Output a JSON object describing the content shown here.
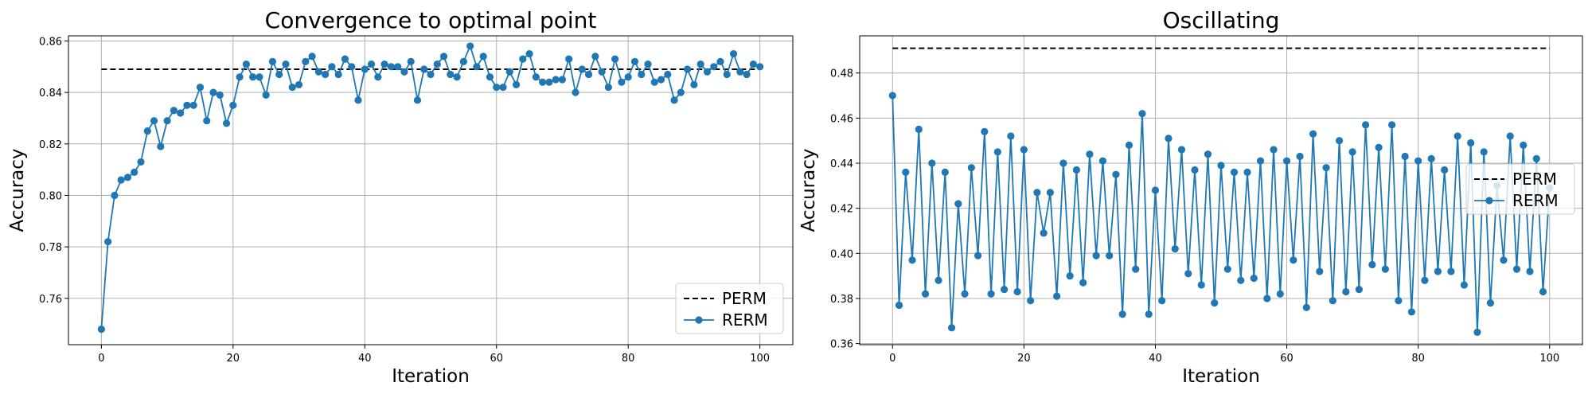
{
  "chart_data": [
    {
      "type": "line",
      "title": "Convergence to optimal point",
      "xlabel": "Iteration",
      "ylabel": "Accuracy",
      "xlim": [
        -5,
        105
      ],
      "ylim": [
        0.742,
        0.862
      ],
      "xticks": [
        0,
        20,
        40,
        60,
        80,
        100
      ],
      "yticks": [
        0.76,
        0.78,
        0.8,
        0.82,
        0.84,
        0.86
      ],
      "ytick_labels": [
        "0.76",
        "0.78",
        "0.80",
        "0.82",
        "0.84",
        "0.86"
      ],
      "grid": true,
      "legend_position": "lower-right",
      "series": [
        {
          "name": "PERM",
          "style": "dashed",
          "color": "#000000",
          "x": [
            0,
            100
          ],
          "values": [
            0.849,
            0.849
          ]
        },
        {
          "name": "RERM",
          "style": "line-marker",
          "color": "#1f77b4",
          "x": [
            0,
            1,
            2,
            3,
            4,
            5,
            6,
            7,
            8,
            9,
            10,
            11,
            12,
            13,
            14,
            15,
            16,
            17,
            18,
            19,
            20,
            21,
            22,
            23,
            24,
            25,
            26,
            27,
            28,
            29,
            30,
            31,
            32,
            33,
            34,
            35,
            36,
            37,
            38,
            39,
            40,
            41,
            42,
            43,
            44,
            45,
            46,
            47,
            48,
            49,
            50,
            51,
            52,
            53,
            54,
            55,
            56,
            57,
            58,
            59,
            60,
            61,
            62,
            63,
            64,
            65,
            66,
            67,
            68,
            69,
            70,
            71,
            72,
            73,
            74,
            75,
            76,
            77,
            78,
            79,
            80,
            81,
            82,
            83,
            84,
            85,
            86,
            87,
            88,
            89,
            90,
            91,
            92,
            93,
            94,
            95,
            96,
            97,
            98,
            99,
            100
          ],
          "values": [
            0.748,
            0.782,
            0.8,
            0.806,
            0.807,
            0.809,
            0.813,
            0.825,
            0.829,
            0.819,
            0.829,
            0.833,
            0.832,
            0.835,
            0.835,
            0.842,
            0.829,
            0.84,
            0.839,
            0.828,
            0.835,
            0.846,
            0.851,
            0.846,
            0.846,
            0.839,
            0.852,
            0.847,
            0.851,
            0.842,
            0.843,
            0.852,
            0.854,
            0.848,
            0.847,
            0.85,
            0.847,
            0.853,
            0.85,
            0.837,
            0.849,
            0.851,
            0.846,
            0.851,
            0.85,
            0.85,
            0.848,
            0.852,
            0.837,
            0.849,
            0.847,
            0.851,
            0.854,
            0.847,
            0.846,
            0.852,
            0.858,
            0.85,
            0.854,
            0.846,
            0.842,
            0.842,
            0.848,
            0.843,
            0.853,
            0.855,
            0.846,
            0.844,
            0.844,
            0.845,
            0.845,
            0.853,
            0.84,
            0.849,
            0.847,
            0.854,
            0.848,
            0.842,
            0.853,
            0.844,
            0.846,
            0.852,
            0.847,
            0.851,
            0.844,
            0.845,
            0.847,
            0.837,
            0.84,
            0.849,
            0.843,
            0.851,
            0.848,
            0.85,
            0.852,
            0.847,
            0.855,
            0.848,
            0.847,
            0.851,
            0.85
          ]
        }
      ]
    },
    {
      "type": "line",
      "title": "Oscillating",
      "xlabel": "Iteration",
      "ylabel": "Accuracy",
      "xlim": [
        -5,
        105
      ],
      "ylim": [
        0.3595,
        0.4965
      ],
      "xticks": [
        0,
        20,
        40,
        60,
        80,
        100
      ],
      "yticks": [
        0.36,
        0.38,
        0.4,
        0.42,
        0.44,
        0.46,
        0.48
      ],
      "ytick_labels": [
        "0.36",
        "0.38",
        "0.40",
        "0.42",
        "0.44",
        "0.46",
        "0.48"
      ],
      "grid": true,
      "legend_position": "center-right",
      "series": [
        {
          "name": "PERM",
          "style": "dashed",
          "color": "#000000",
          "x": [
            0,
            100
          ],
          "values": [
            0.491,
            0.491
          ]
        },
        {
          "name": "RERM",
          "style": "line-marker",
          "color": "#1f77b4",
          "x": [
            0,
            1,
            2,
            3,
            4,
            5,
            6,
            7,
            8,
            9,
            10,
            11,
            12,
            13,
            14,
            15,
            16,
            17,
            18,
            19,
            20,
            21,
            22,
            23,
            24,
            25,
            26,
            27,
            28,
            29,
            30,
            31,
            32,
            33,
            34,
            35,
            36,
            37,
            38,
            39,
            40,
            41,
            42,
            43,
            44,
            45,
            46,
            47,
            48,
            49,
            50,
            51,
            52,
            53,
            54,
            55,
            56,
            57,
            58,
            59,
            60,
            61,
            62,
            63,
            64,
            65,
            66,
            67,
            68,
            69,
            70,
            71,
            72,
            73,
            74,
            75,
            76,
            77,
            78,
            79,
            80,
            81,
            82,
            83,
            84,
            85,
            86,
            87,
            88,
            89,
            90,
            91,
            92,
            93,
            94,
            95,
            96,
            97,
            98,
            99,
            100
          ],
          "values": [
            0.47,
            0.377,
            0.436,
            0.397,
            0.455,
            0.382,
            0.44,
            0.388,
            0.436,
            0.367,
            0.422,
            0.382,
            0.438,
            0.399,
            0.454,
            0.382,
            0.445,
            0.384,
            0.452,
            0.383,
            0.446,
            0.379,
            0.427,
            0.409,
            0.427,
            0.381,
            0.44,
            0.39,
            0.437,
            0.387,
            0.444,
            0.399,
            0.441,
            0.399,
            0.435,
            0.373,
            0.448,
            0.393,
            0.462,
            0.373,
            0.428,
            0.379,
            0.451,
            0.402,
            0.446,
            0.391,
            0.437,
            0.386,
            0.444,
            0.378,
            0.439,
            0.393,
            0.436,
            0.388,
            0.436,
            0.389,
            0.441,
            0.38,
            0.446,
            0.382,
            0.441,
            0.397,
            0.443,
            0.376,
            0.453,
            0.392,
            0.438,
            0.379,
            0.45,
            0.383,
            0.445,
            0.384,
            0.457,
            0.395,
            0.447,
            0.393,
            0.457,
            0.379,
            0.443,
            0.374,
            0.441,
            0.388,
            0.442,
            0.392,
            0.437,
            0.392,
            0.452,
            0.386,
            0.449,
            0.365,
            0.445,
            0.378,
            0.43,
            0.397,
            0.452,
            0.393,
            0.448,
            0.392,
            0.442,
            0.383,
            0.429
          ]
        }
      ]
    }
  ]
}
